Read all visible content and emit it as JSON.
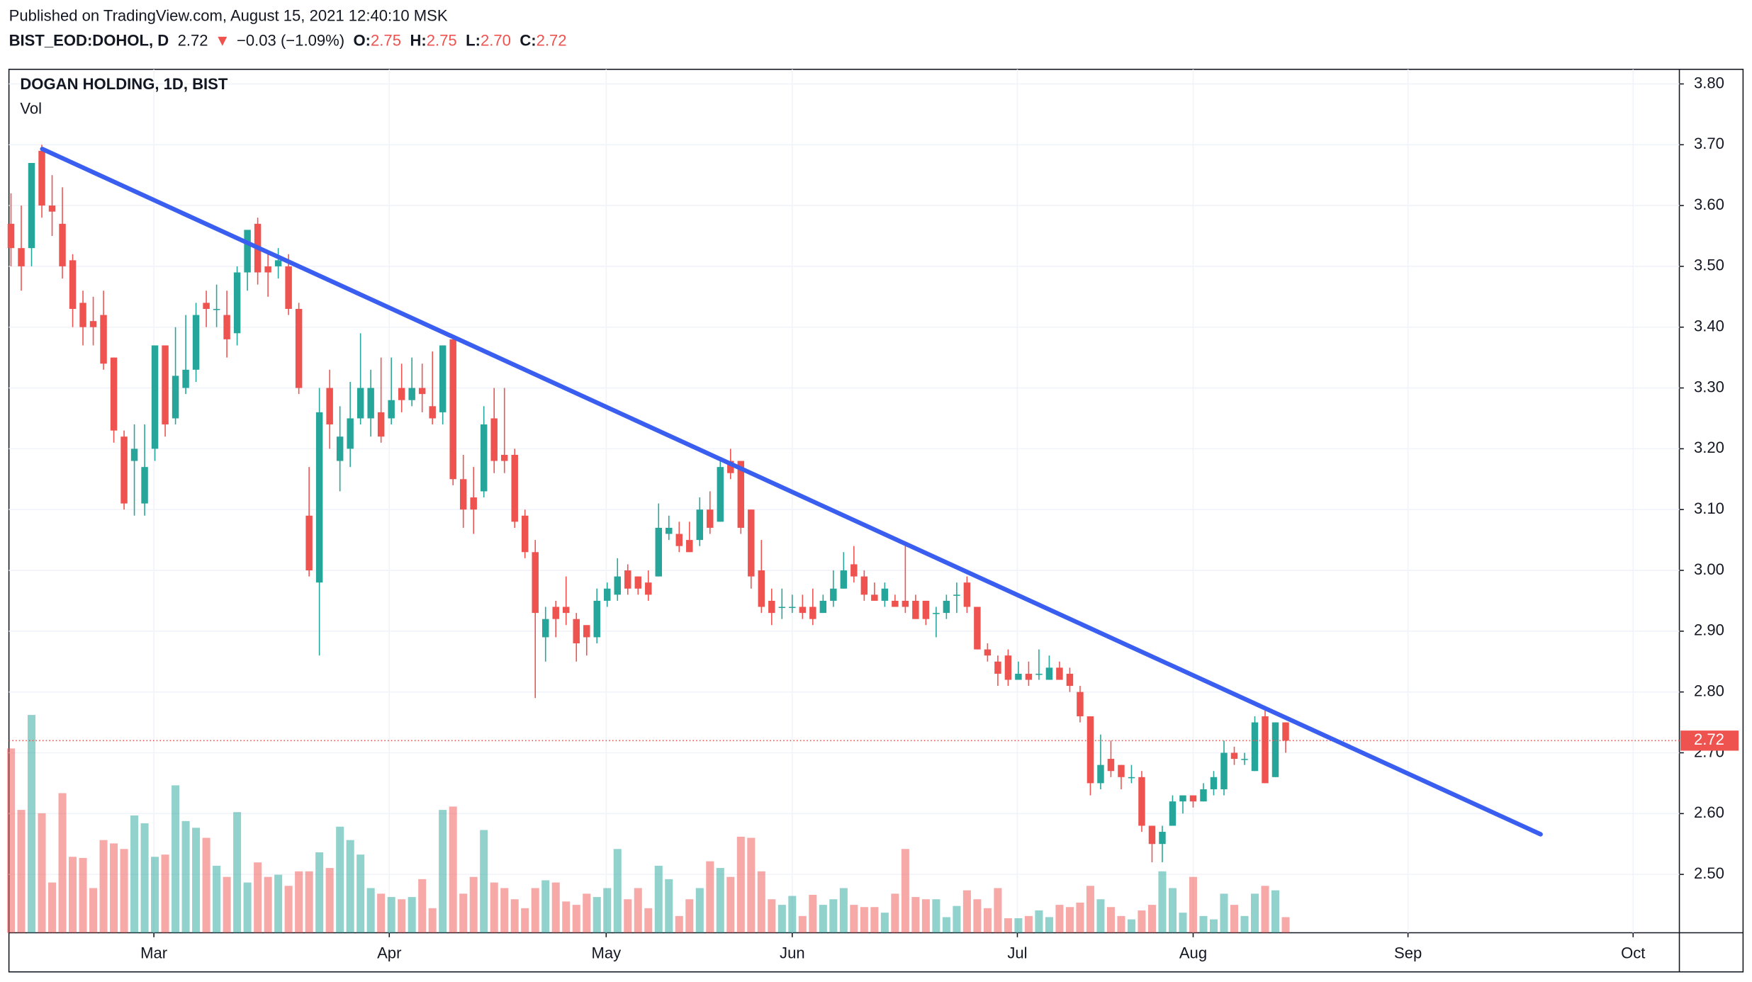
{
  "header": {
    "published": "Published on TradingView.com, August 15, 2021 12:40:10 MSK",
    "symbol": "BIST_EOD:DOHOL, D",
    "price": "2.72",
    "arrow": "▼",
    "change": "−0.03 (−1.09%)",
    "ohlc": [
      {
        "label": "O:",
        "value": "2.75"
      },
      {
        "label": "H:",
        "value": "2.75"
      },
      {
        "label": "L:",
        "value": "2.70"
      },
      {
        "label": "C:",
        "value": "2.72"
      }
    ]
  },
  "chart_data": {
    "type": "candlestick",
    "title": "DOGAN HOLDING, 1D, BIST",
    "volume_label": "Vol",
    "up_color": "#26a69a",
    "down_color": "#ef5350",
    "open": [
      3.57,
      3.53,
      3.53,
      3.69,
      3.6,
      3.57,
      3.51,
      3.44,
      3.41,
      3.42,
      3.35,
      3.22,
      3.18,
      3.11,
      3.2,
      3.37,
      3.25,
      3.3,
      3.33,
      3.44,
      3.43,
      3.42,
      3.39,
      3.49,
      3.57,
      3.5,
      3.5,
      3.5,
      3.43,
      3.09,
      2.98,
      3.3,
      3.18,
      3.2,
      3.25,
      3.25,
      3.26,
      3.25,
      3.3,
      3.28,
      3.3,
      3.27,
      3.26,
      3.38,
      3.15,
      3.12,
      3.13,
      3.25,
      3.19,
      3.19,
      3.09,
      3.03,
      2.89,
      2.94,
      2.94,
      2.92,
      2.91,
      2.89,
      2.95,
      2.96,
      3.0,
      2.99,
      2.98,
      2.99,
      3.06,
      3.06,
      3.05,
      3.05,
      3.1,
      3.08,
      3.18,
      3.18,
      3.1,
      3.0,
      2.95,
      2.94,
      2.94,
      2.94,
      2.94,
      2.93,
      2.95,
      2.97,
      3.01,
      2.99,
      2.96,
      2.95,
      2.95,
      2.95,
      2.95,
      2.95,
      2.93,
      2.93,
      2.96,
      2.98,
      2.94,
      2.87,
      2.85,
      2.86,
      2.82,
      2.83,
      2.83,
      2.82,
      2.84,
      2.83,
      2.8,
      2.76,
      2.65,
      2.69,
      2.68,
      2.66,
      2.66,
      2.58,
      2.55,
      2.58,
      2.62,
      2.63,
      2.62,
      2.64,
      2.64,
      2.7,
      2.69,
      2.67,
      2.76,
      2.66,
      2.75
    ],
    "high": [
      3.62,
      3.6,
      3.67,
      3.7,
      3.65,
      3.63,
      3.52,
      3.46,
      3.45,
      3.46,
      3.35,
      3.23,
      3.24,
      3.24,
      3.37,
      3.37,
      3.4,
      3.42,
      3.44,
      3.46,
      3.47,
      3.46,
      3.5,
      3.56,
      3.58,
      3.52,
      3.53,
      3.52,
      3.44,
      3.17,
      3.3,
      3.33,
      3.27,
      3.31,
      3.39,
      3.33,
      3.35,
      3.35,
      3.34,
      3.35,
      3.34,
      3.36,
      3.37,
      3.38,
      3.19,
      3.17,
      3.27,
      3.3,
      3.3,
      3.2,
      3.1,
      3.05,
      2.94,
      2.95,
      2.99,
      2.93,
      2.91,
      2.97,
      2.98,
      3.02,
      3.01,
      2.99,
      3.0,
      3.11,
      3.09,
      3.08,
      3.08,
      3.12,
      3.13,
      3.18,
      3.2,
      3.18,
      3.1,
      3.05,
      2.97,
      2.97,
      2.96,
      2.96,
      2.97,
      2.96,
      3.0,
      3.03,
      3.04,
      3.0,
      2.98,
      2.98,
      2.96,
      3.04,
      2.96,
      2.95,
      2.94,
      2.96,
      2.98,
      2.99,
      2.94,
      2.88,
      2.86,
      2.87,
      2.85,
      2.85,
      2.87,
      2.86,
      2.85,
      2.84,
      2.81,
      2.76,
      2.73,
      2.72,
      2.68,
      2.68,
      2.67,
      2.58,
      2.58,
      2.63,
      2.63,
      2.63,
      2.65,
      2.67,
      2.72,
      2.71,
      2.7,
      2.76,
      2.77,
      2.75,
      2.75
    ],
    "low": [
      3.5,
      3.46,
      3.5,
      3.58,
      3.55,
      3.48,
      3.4,
      3.37,
      3.37,
      3.33,
      3.21,
      3.1,
      3.09,
      3.09,
      3.18,
      3.22,
      3.24,
      3.29,
      3.31,
      3.4,
      3.4,
      3.35,
      3.37,
      3.46,
      3.47,
      3.45,
      3.48,
      3.42,
      3.29,
      2.99,
      2.86,
      3.2,
      3.13,
      3.17,
      3.24,
      3.22,
      3.21,
      3.24,
      3.26,
      3.27,
      3.26,
      3.24,
      3.24,
      3.14,
      3.07,
      3.06,
      3.12,
      3.16,
      3.16,
      3.07,
      3.02,
      2.79,
      2.85,
      2.89,
      2.91,
      2.85,
      2.86,
      2.88,
      2.94,
      2.95,
      2.96,
      2.96,
      2.95,
      2.99,
      3.05,
      3.03,
      3.03,
      3.04,
      3.06,
      3.08,
      3.15,
      3.06,
      2.97,
      2.93,
      2.91,
      2.92,
      2.93,
      2.92,
      2.91,
      2.93,
      2.94,
      2.97,
      2.98,
      2.95,
      2.95,
      2.94,
      2.94,
      2.93,
      2.92,
      2.91,
      2.89,
      2.92,
      2.93,
      2.93,
      2.87,
      2.85,
      2.81,
      2.81,
      2.82,
      2.81,
      2.82,
      2.82,
      2.82,
      2.8,
      2.75,
      2.63,
      2.64,
      2.66,
      2.64,
      2.65,
      2.57,
      2.52,
      2.52,
      2.58,
      2.6,
      2.61,
      2.62,
      2.63,
      2.63,
      2.68,
      2.68,
      2.67,
      2.65,
      2.66,
      2.7
    ],
    "close": [
      3.53,
      3.5,
      3.67,
      3.6,
      3.59,
      3.5,
      3.43,
      3.4,
      3.4,
      3.34,
      3.23,
      3.11,
      3.2,
      3.17,
      3.37,
      3.24,
      3.32,
      3.33,
      3.42,
      3.43,
      3.43,
      3.38,
      3.49,
      3.56,
      3.49,
      3.49,
      3.51,
      3.43,
      3.3,
      3.0,
      3.26,
      3.24,
      3.22,
      3.25,
      3.3,
      3.3,
      3.22,
      3.28,
      3.28,
      3.3,
      3.29,
      3.25,
      3.37,
      3.15,
      3.1,
      3.1,
      3.24,
      3.18,
      3.18,
      3.08,
      3.03,
      2.93,
      2.92,
      2.92,
      2.93,
      2.88,
      2.89,
      2.95,
      2.97,
      2.99,
      2.97,
      2.97,
      2.96,
      3.07,
      3.07,
      3.04,
      3.03,
      3.1,
      3.07,
      3.17,
      3.16,
      3.07,
      2.99,
      2.94,
      2.93,
      2.94,
      2.94,
      2.93,
      2.92,
      2.95,
      2.97,
      3.0,
      2.99,
      2.96,
      2.95,
      2.97,
      2.94,
      2.94,
      2.92,
      2.92,
      2.93,
      2.95,
      2.96,
      2.94,
      2.87,
      2.86,
      2.83,
      2.82,
      2.83,
      2.82,
      2.83,
      2.84,
      2.82,
      2.81,
      2.76,
      2.65,
      2.68,
      2.67,
      2.66,
      2.66,
      2.58,
      2.55,
      2.57,
      2.62,
      2.63,
      2.62,
      2.64,
      2.66,
      2.7,
      2.69,
      2.69,
      2.75,
      2.65,
      2.75,
      2.72
    ],
    "volume": [
      165,
      110,
      195,
      107,
      45,
      125,
      68,
      67,
      40,
      83,
      80,
      75,
      105,
      98,
      68,
      70,
      132,
      100,
      94,
      85,
      60,
      50,
      108,
      45,
      63,
      50,
      52,
      42,
      55,
      55,
      72,
      58,
      95,
      83,
      70,
      40,
      35,
      32,
      30,
      32,
      48,
      22,
      110,
      113,
      35,
      50,
      92,
      45,
      40,
      30,
      22,
      40,
      47,
      45,
      28,
      25,
      35,
      32,
      40,
      75,
      30,
      40,
      22,
      60,
      48,
      15,
      30,
      40,
      64,
      58,
      50,
      86,
      85,
      55,
      30,
      25,
      33,
      15,
      34,
      25,
      30,
      40,
      25,
      23,
      23,
      18,
      35,
      75,
      32,
      30,
      30,
      14,
      24,
      38,
      30,
      22,
      40,
      13,
      13,
      15,
      20,
      14,
      25,
      23,
      27,
      42,
      30,
      23,
      15,
      12,
      20,
      25,
      55,
      40,
      18,
      50,
      15,
      12,
      35,
      25,
      15,
      35,
      42,
      38,
      14
    ],
    "last_price": 2.72,
    "trendline": {
      "x": [
        3.04,
        148.8
      ],
      "y": [
        3.693,
        2.566
      ],
      "color": "#3a5ff0"
    },
    "ylim": [
      2.404,
      3.824
    ],
    "yticks": [
      {
        "value": 3.8,
        "label": "3.80"
      },
      {
        "value": 3.7,
        "label": "3.70"
      },
      {
        "value": 3.6,
        "label": "3.60"
      },
      {
        "value": 3.5,
        "label": "3.50"
      },
      {
        "value": 3.4,
        "label": "3.40"
      },
      {
        "value": 3.3,
        "label": "3.30"
      },
      {
        "value": 3.2,
        "label": "3.20"
      },
      {
        "value": 3.1,
        "label": "3.10"
      },
      {
        "value": 3.0,
        "label": "3.00"
      },
      {
        "value": 2.9,
        "label": "2.90"
      },
      {
        "value": 2.8,
        "label": "2.80"
      },
      {
        "value": 2.7,
        "label": "2.70"
      },
      {
        "value": 2.6,
        "label": "2.60"
      },
      {
        "value": 2.5,
        "label": "2.50"
      }
    ],
    "xlim": [
      -0.2,
      162.3
    ],
    "xticks": [
      {
        "value": 13.9,
        "label": "Mar"
      },
      {
        "value": 36.8,
        "label": "Apr"
      },
      {
        "value": 57.9,
        "label": "May"
      },
      {
        "value": 76,
        "label": "Jun"
      },
      {
        "value": 97.9,
        "label": "Jul"
      },
      {
        "value": 115,
        "label": "Aug"
      },
      {
        "value": 135.9,
        "label": "Sep"
      },
      {
        "value": 157.8,
        "label": "Oct"
      }
    ],
    "grid": true
  }
}
